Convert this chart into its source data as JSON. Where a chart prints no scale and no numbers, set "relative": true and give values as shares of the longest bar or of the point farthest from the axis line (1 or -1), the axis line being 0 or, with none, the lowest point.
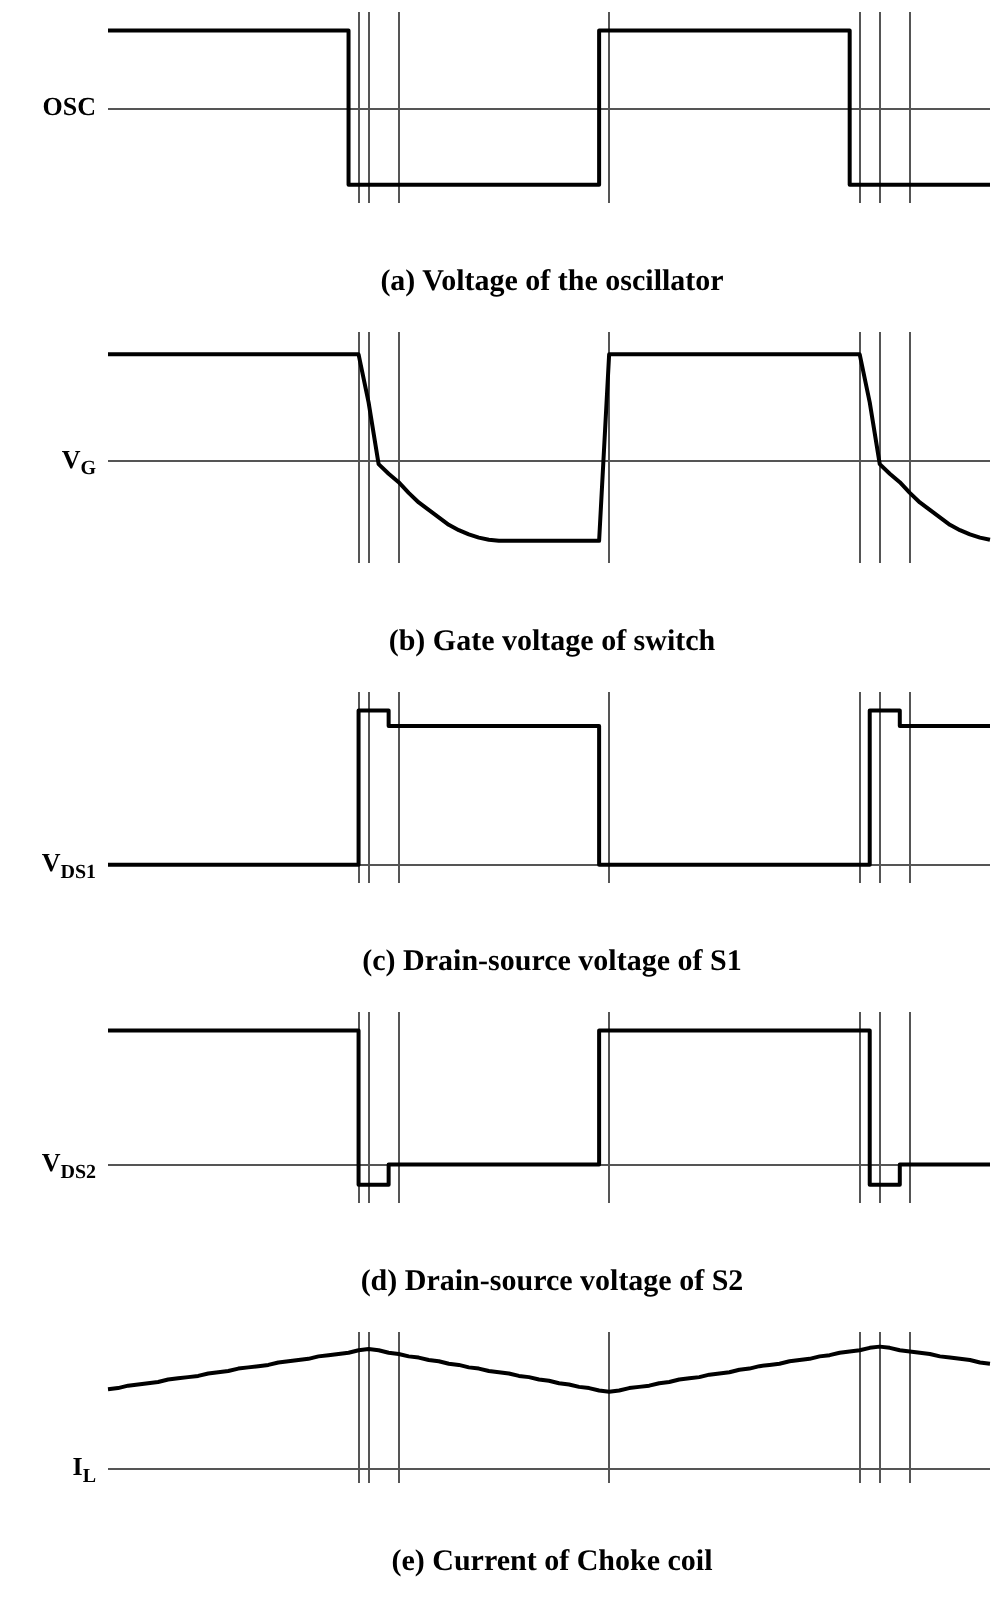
{
  "chart_data": [
    {
      "type": "step",
      "relative": true,
      "grid": true,
      "title": "(a) Voltage of the oscillator",
      "ylabel": "OSC",
      "categories": [
        null,
        null,
        null,
        null,
        null,
        null,
        null,
        null,
        null,
        null,
        null,
        null,
        null,
        null,
        null,
        null,
        null,
        null,
        null,
        null,
        null,
        null,
        null,
        null,
        null,
        null,
        null,
        null,
        null,
        null,
        null,
        null,
        null,
        null,
        null,
        null,
        null,
        null,
        null,
        null,
        null,
        null,
        null,
        null,
        null,
        null,
        null,
        null,
        null,
        null,
        null,
        null,
        null,
        null,
        null,
        null,
        null,
        null,
        null,
        null,
        null,
        null,
        null,
        null,
        null,
        null,
        null,
        null,
        null,
        null,
        null,
        null,
        null,
        null,
        null,
        null,
        null,
        null,
        null,
        null,
        null,
        null,
        null,
        null,
        null,
        null,
        null,
        null,
        null
      ],
      "series": [
        {
          "color": "#000000",
          "values": [
            1,
            1,
            1,
            1,
            1,
            1,
            1,
            1,
            1,
            1,
            1,
            1,
            1,
            1,
            1,
            1,
            1,
            1,
            1,
            1,
            1,
            1,
            1,
            1,
            1,
            -0.97,
            -0.97,
            -0.97,
            -0.97,
            -0.97,
            -0.97,
            -0.97,
            -0.97,
            -0.97,
            -0.97,
            -0.97,
            -0.97,
            -0.97,
            -0.97,
            -0.97,
            -0.97,
            -0.97,
            -0.97,
            -0.97,
            -0.97,
            -0.97,
            -0.97,
            -0.97,
            -0.97,
            -0.97,
            1,
            1,
            1,
            1,
            1,
            1,
            1,
            1,
            1,
            1,
            1,
            1,
            1,
            1,
            1,
            1,
            1,
            1,
            1,
            1,
            1,
            1,
            1,
            1,
            1,
            -0.97,
            -0.97,
            -0.97,
            -0.97,
            -0.97,
            -0.97,
            -0.97,
            -0.97,
            -0.97,
            -0.97,
            -0.97,
            -0.97,
            -0.97,
            -0.97
          ]
        }
      ]
    },
    {
      "type": "line",
      "relative": true,
      "grid": true,
      "title": "(b) Gate voltage of switch",
      "ylabel": "V$_{G}$",
      "categories": [
        null,
        null,
        null,
        null,
        null,
        null,
        null,
        null,
        null,
        null,
        null,
        null,
        null,
        null,
        null,
        null,
        null,
        null,
        null,
        null,
        null,
        null,
        null,
        null,
        null,
        null,
        null,
        null,
        null,
        null,
        null,
        null,
        null,
        null,
        null,
        null,
        null,
        null,
        null,
        null,
        null,
        null,
        null,
        null,
        null,
        null,
        null,
        null,
        null,
        null,
        null,
        null,
        null,
        null,
        null,
        null,
        null,
        null,
        null,
        null,
        null,
        null,
        null,
        null,
        null,
        null,
        null,
        null,
        null,
        null,
        null,
        null,
        null,
        null,
        null,
        null,
        null,
        null,
        null,
        null,
        null,
        null,
        null,
        null,
        null,
        null,
        null,
        null,
        null
      ],
      "series": [
        {
          "color": "#000000",
          "values": [
            1,
            1,
            1,
            1,
            1,
            1,
            1,
            1,
            1,
            1,
            1,
            1,
            1,
            1,
            1,
            1,
            1,
            1,
            1,
            1,
            1,
            1,
            1,
            1,
            1,
            1,
            0.55,
            -0.03,
            -0.12,
            -0.2,
            -0.3,
            -0.39,
            -0.46,
            -0.53,
            -0.6,
            -0.65,
            -0.69,
            -0.72,
            -0.74,
            -0.75,
            -0.75,
            -0.75,
            -0.75,
            -0.75,
            -0.75,
            -0.75,
            -0.75,
            -0.75,
            -0.75,
            -0.75,
            1,
            1,
            1,
            1,
            1,
            1,
            1,
            1,
            1,
            1,
            1,
            1,
            1,
            1,
            1,
            1,
            1,
            1,
            1,
            1,
            1,
            1,
            1,
            1,
            1,
            1,
            0.55,
            -0.03,
            -0.12,
            -0.2,
            -0.3,
            -0.39,
            -0.46,
            -0.53,
            -0.6,
            -0.65,
            -0.69,
            -0.72,
            -0.74
          ]
        }
      ]
    },
    {
      "type": "step",
      "relative": true,
      "grid": true,
      "title": "(c) Drain-source voltage of S1",
      "ylabel": "V$_{DS1}$",
      "categories": [
        null,
        null,
        null,
        null,
        null,
        null,
        null,
        null,
        null,
        null,
        null,
        null,
        null,
        null,
        null,
        null,
        null,
        null,
        null,
        null,
        null,
        null,
        null,
        null,
        null,
        null,
        null,
        null,
        null,
        null,
        null,
        null,
        null,
        null,
        null,
        null,
        null,
        null,
        null,
        null,
        null,
        null,
        null,
        null,
        null,
        null,
        null,
        null,
        null,
        null,
        null,
        null,
        null,
        null,
        null,
        null,
        null,
        null,
        null,
        null,
        null,
        null,
        null,
        null,
        null,
        null,
        null,
        null,
        null,
        null,
        null,
        null,
        null,
        null,
        null,
        null,
        null,
        null,
        null,
        null,
        null,
        null,
        null,
        null,
        null,
        null,
        null,
        null,
        null
      ],
      "series": [
        {
          "color": "#000000",
          "values": [
            0,
            0,
            0,
            0,
            0,
            0,
            0,
            0,
            0,
            0,
            0,
            0,
            0,
            0,
            0,
            0,
            0,
            0,
            0,
            0,
            0,
            0,
            0,
            0,
            0,
            0,
            1,
            1,
            1,
            0.9,
            0.9,
            0.9,
            0.9,
            0.9,
            0.9,
            0.9,
            0.9,
            0.9,
            0.9,
            0.9,
            0.9,
            0.9,
            0.9,
            0.9,
            0.9,
            0.9,
            0.9,
            0.9,
            0.9,
            0.9,
            0,
            0,
            0,
            0,
            0,
            0,
            0,
            0,
            0,
            0,
            0,
            0,
            0,
            0,
            0,
            0,
            0,
            0,
            0,
            0,
            0,
            0,
            0,
            0,
            0,
            0,
            0,
            1,
            1,
            1,
            0.9,
            0.9,
            0.9,
            0.9,
            0.9,
            0.9,
            0.9,
            0.9,
            0.9
          ]
        }
      ]
    },
    {
      "type": "step",
      "relative": true,
      "grid": true,
      "title": "(d) Drain-source voltage of S2",
      "ylabel": "V$_{DS2}$",
      "categories": [
        null,
        null,
        null,
        null,
        null,
        null,
        null,
        null,
        null,
        null,
        null,
        null,
        null,
        null,
        null,
        null,
        null,
        null,
        null,
        null,
        null,
        null,
        null,
        null,
        null,
        null,
        null,
        null,
        null,
        null,
        null,
        null,
        null,
        null,
        null,
        null,
        null,
        null,
        null,
        null,
        null,
        null,
        null,
        null,
        null,
        null,
        null,
        null,
        null,
        null,
        null,
        null,
        null,
        null,
        null,
        null,
        null,
        null,
        null,
        null,
        null,
        null,
        null,
        null,
        null,
        null,
        null,
        null,
        null,
        null,
        null,
        null,
        null,
        null,
        null,
        null,
        null,
        null,
        null,
        null,
        null,
        null,
        null,
        null,
        null,
        null,
        null,
        null,
        null
      ],
      "series": [
        {
          "color": "#000000",
          "values": [
            1,
            1,
            1,
            1,
            1,
            1,
            1,
            1,
            1,
            1,
            1,
            1,
            1,
            1,
            1,
            1,
            1,
            1,
            1,
            1,
            1,
            1,
            1,
            1,
            1,
            1,
            -0.15,
            -0.15,
            -0.15,
            0,
            0,
            0,
            0,
            0,
            0,
            0,
            0,
            0,
            0,
            0,
            0,
            0,
            0,
            0,
            0,
            0,
            0,
            0,
            0,
            0,
            1,
            1,
            1,
            1,
            1,
            1,
            1,
            1,
            1,
            1,
            1,
            1,
            1,
            1,
            1,
            1,
            1,
            1,
            1,
            1,
            1,
            1,
            1,
            1,
            1,
            1,
            1,
            -0.15,
            -0.15,
            -0.15,
            0,
            0,
            0,
            0,
            0,
            0,
            0,
            0,
            0
          ]
        }
      ]
    },
    {
      "type": "line",
      "relative": true,
      "grid": true,
      "title": "(e) Current of Choke coil",
      "ylabel": "I$_{L}$",
      "categories": [
        null,
        null,
        null,
        null,
        null,
        null,
        null,
        null,
        null,
        null,
        null,
        null,
        null,
        null,
        null,
        null,
        null,
        null,
        null,
        null,
        null,
        null,
        null,
        null,
        null,
        null,
        null,
        null,
        null,
        null,
        null,
        null,
        null,
        null,
        null,
        null,
        null,
        null,
        null,
        null,
        null,
        null,
        null,
        null,
        null,
        null,
        null,
        null,
        null,
        null,
        null,
        null,
        null,
        null,
        null,
        null,
        null,
        null,
        null,
        null,
        null,
        null,
        null,
        null,
        null,
        null,
        null,
        null,
        null,
        null,
        null,
        null,
        null,
        null,
        null,
        null,
        null,
        null,
        null,
        null,
        null,
        null,
        null,
        null,
        null,
        null,
        null,
        null,
        null
      ],
      "series": [
        {
          "color": "#000000",
          "values": [
            0.65,
            0.66,
            0.68,
            0.69,
            0.7,
            0.71,
            0.73,
            0.74,
            0.75,
            0.76,
            0.78,
            0.79,
            0.8,
            0.82,
            0.83,
            0.84,
            0.85,
            0.87,
            0.88,
            0.89,
            0.9,
            0.92,
            0.93,
            0.94,
            0.95,
            0.97,
            0.98,
            0.97,
            0.95,
            0.94,
            0.92,
            0.91,
            0.89,
            0.88,
            0.86,
            0.85,
            0.83,
            0.82,
            0.8,
            0.79,
            0.78,
            0.76,
            0.75,
            0.73,
            0.72,
            0.7,
            0.69,
            0.67,
            0.66,
            0.64,
            0.63,
            0.64,
            0.66,
            0.67,
            0.68,
            0.7,
            0.71,
            0.73,
            0.74,
            0.75,
            0.77,
            0.78,
            0.79,
            0.81,
            0.82,
            0.84,
            0.85,
            0.86,
            0.88,
            0.89,
            0.9,
            0.92,
            0.93,
            0.95,
            0.96,
            0.97,
            0.99,
            1,
            0.99,
            0.97,
            0.96,
            0.95,
            0.94,
            0.92,
            0.91,
            0.9,
            0.89,
            0.87,
            0.86
          ]
        }
      ]
    }
  ]
}
